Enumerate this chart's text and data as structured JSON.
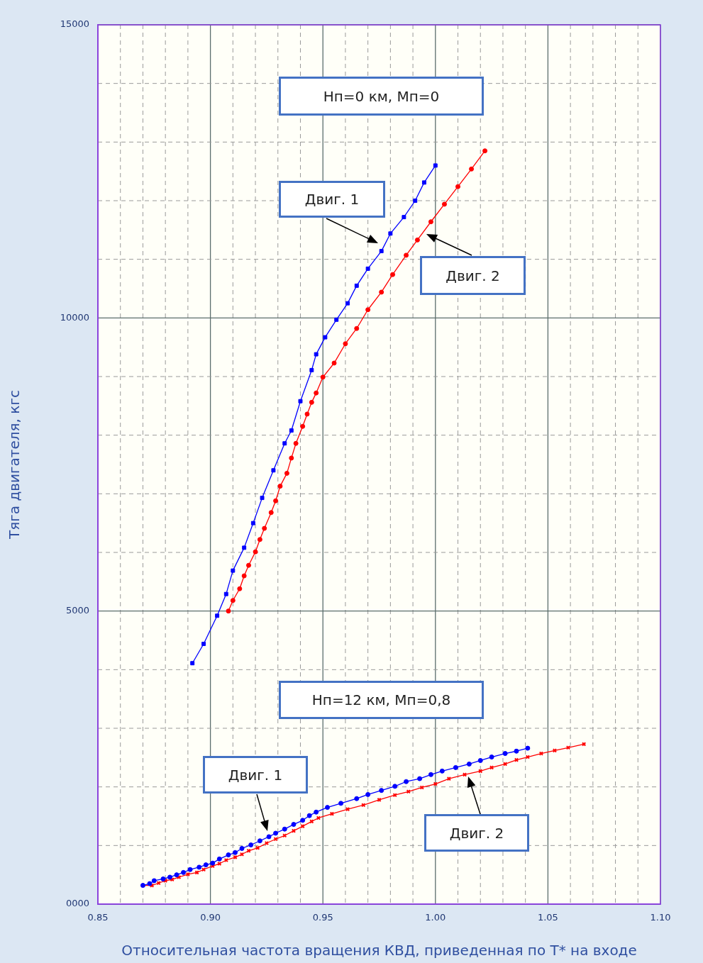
{
  "chart_data": {
    "type": "line",
    "xlabel": "Относительная частота вращения КВД, приведенная по T* на входе",
    "ylabel": "Тяга двигателя, кгс",
    "xlim": [
      0.85,
      1.1
    ],
    "ylim": [
      0,
      15000
    ],
    "xticks": [
      {
        "value": 0.85,
        "label": "0.85"
      },
      {
        "value": 0.86,
        "label": null
      },
      {
        "value": 0.87,
        "label": null
      },
      {
        "value": 0.88,
        "label": null
      },
      {
        "value": 0.89,
        "label": null
      },
      {
        "value": 0.9,
        "label": "0.90"
      },
      {
        "value": 0.91,
        "label": null
      },
      {
        "value": 0.92,
        "label": null
      },
      {
        "value": 0.93,
        "label": null
      },
      {
        "value": 0.94,
        "label": null
      },
      {
        "value": 0.95,
        "label": "0.95"
      },
      {
        "value": 0.96,
        "label": null
      },
      {
        "value": 0.97,
        "label": null
      },
      {
        "value": 0.98,
        "label": null
      },
      {
        "value": 0.99,
        "label": null
      },
      {
        "value": 1.0,
        "label": "1.00"
      },
      {
        "value": 1.01,
        "label": null
      },
      {
        "value": 1.02,
        "label": null
      },
      {
        "value": 1.03,
        "label": null
      },
      {
        "value": 1.04,
        "label": null
      },
      {
        "value": 1.05,
        "label": "1.05"
      },
      {
        "value": 1.06,
        "label": null
      },
      {
        "value": 1.07,
        "label": null
      },
      {
        "value": 1.08,
        "label": null
      },
      {
        "value": 1.09,
        "label": null
      },
      {
        "value": 1.1,
        "label": "1.10"
      }
    ],
    "yticks": [
      {
        "value": 0,
        "label": "0000"
      },
      {
        "value": 1000,
        "label": null
      },
      {
        "value": 2000,
        "label": null
      },
      {
        "value": 3000,
        "label": null
      },
      {
        "value": 4000,
        "label": null
      },
      5000,
      {
        "value": 6000,
        "label": null
      },
      {
        "value": 7000,
        "label": null
      },
      {
        "value": 8000,
        "label": null
      },
      {
        "value": 9000,
        "label": null
      },
      10000,
      {
        "value": 11000,
        "label": null
      },
      {
        "value": 12000,
        "label": null
      },
      {
        "value": 13000,
        "label": null
      },
      {
        "value": 14000,
        "label": null
      },
      15000
    ],
    "grid": true,
    "legend": false,
    "line_style": "solid",
    "series": [
      {
        "color": "#0000ff",
        "marker": "square",
        "x": [
          0.892,
          0.897,
          0.903,
          0.907,
          0.91,
          0.915,
          0.919,
          0.923,
          0.928,
          0.933,
          0.936,
          0.94,
          0.945,
          0.947,
          0.951,
          0.956,
          0.961,
          0.965,
          0.97,
          0.976,
          0.98,
          0.986,
          0.991,
          0.995,
          1.0
        ],
        "values": [
          4110,
          4440,
          4920,
          5290,
          5690,
          6080,
          6500,
          6930,
          7400,
          7860,
          8080,
          8580,
          9110,
          9380,
          9670,
          9970,
          10250,
          10550,
          10840,
          11140,
          11440,
          11720,
          12000,
          12310,
          12600
        ]
      },
      {
        "color": "#ff0000",
        "marker": "circle",
        "x": [
          0.908,
          0.91,
          0.913,
          0.915,
          0.917,
          0.92,
          0.922,
          0.924,
          0.927,
          0.929,
          0.931,
          0.934,
          0.936,
          0.938,
          0.941,
          0.943,
          0.945,
          0.947,
          0.95,
          0.955,
          0.96,
          0.965,
          0.97,
          0.976,
          0.981,
          0.987,
          0.992,
          0.998,
          1.004,
          1.01,
          1.016,
          1.022
        ],
        "values": [
          5000,
          5180,
          5380,
          5600,
          5780,
          6010,
          6220,
          6410,
          6680,
          6880,
          7130,
          7350,
          7610,
          7860,
          8150,
          8360,
          8560,
          8720,
          8990,
          9230,
          9560,
          9820,
          10140,
          10440,
          10740,
          11070,
          11330,
          11640,
          11940,
          12240,
          12540,
          12850
        ]
      },
      {
        "color": "#0000ff",
        "marker": "circle",
        "x": [
          0.87,
          0.873,
          0.875,
          0.879,
          0.882,
          0.885,
          0.888,
          0.891,
          0.895,
          0.898,
          0.901,
          0.904,
          0.908,
          0.911,
          0.914,
          0.918,
          0.922,
          0.926,
          0.929,
          0.933,
          0.937,
          0.941,
          0.944,
          0.947,
          0.952,
          0.958,
          0.965,
          0.97,
          0.976,
          0.982,
          0.987,
          0.993,
          0.998,
          1.003,
          1.009,
          1.015,
          1.02,
          1.025,
          1.031,
          1.036,
          1.041
        ],
        "values": [
          320,
          350,
          400,
          430,
          460,
          500,
          540,
          590,
          630,
          670,
          700,
          770,
          840,
          880,
          950,
          1010,
          1080,
          1150,
          1210,
          1280,
          1360,
          1430,
          1510,
          1570,
          1650,
          1720,
          1800,
          1870,
          1940,
          2010,
          2090,
          2140,
          2210,
          2270,
          2330,
          2390,
          2450,
          2510,
          2570,
          2610,
          2660
        ]
      },
      {
        "color": "#ff0000",
        "marker": "cross",
        "x": [
          0.87,
          0.874,
          0.877,
          0.88,
          0.883,
          0.886,
          0.89,
          0.894,
          0.897,
          0.901,
          0.904,
          0.907,
          0.911,
          0.914,
          0.917,
          0.921,
          0.925,
          0.929,
          0.933,
          0.937,
          0.941,
          0.945,
          0.948,
          0.954,
          0.961,
          0.968,
          0.975,
          0.982,
          0.988,
          0.994,
          1.0,
          1.006,
          1.013,
          1.02,
          1.025,
          1.031,
          1.036,
          1.041,
          1.047,
          1.053,
          1.059,
          1.066
        ],
        "values": [
          320,
          320,
          360,
          400,
          420,
          460,
          510,
          540,
          590,
          650,
          690,
          750,
          800,
          850,
          910,
          960,
          1040,
          1110,
          1170,
          1250,
          1330,
          1410,
          1470,
          1540,
          1620,
          1690,
          1780,
          1860,
          1920,
          1990,
          2050,
          2140,
          2210,
          2270,
          2330,
          2390,
          2460,
          2510,
          2570,
          2620,
          2670,
          2730
        ]
      }
    ],
    "annotations": [
      "Нп=0 км, Мп=0",
      "Двиг. 1",
      "Двиг. 2",
      "Нп=12 км, Мп=0,8",
      "Двиг. 1",
      "Двиг. 2"
    ]
  }
}
